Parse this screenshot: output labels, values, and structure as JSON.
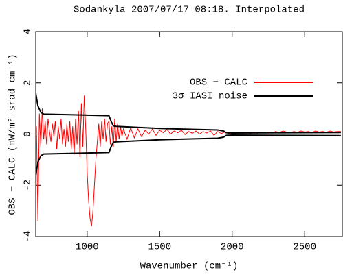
{
  "chart_data": {
    "type": "line",
    "title": "Sodankyla 2007/07/17 08:18. Interpolated",
    "x_label": "Wavenumber (cm⁻¹)",
    "y_label": "OBS − CALC (mW/m² srad cm⁻¹)",
    "xlim": [
      645,
      2760
    ],
    "ylim": [
      -4,
      4
    ],
    "xticks": [
      1000,
      1500,
      2000,
      2500
    ],
    "yticks": [
      -4,
      -2,
      0,
      2,
      4
    ],
    "legend": "upper right",
    "series": [
      {
        "name": "OBS − CALC",
        "color": "#ff0000",
        "x": [
          650,
          660,
          670,
          680,
          690,
          700,
          710,
          720,
          730,
          740,
          750,
          760,
          770,
          780,
          790,
          800,
          810,
          820,
          830,
          840,
          850,
          860,
          870,
          880,
          890,
          900,
          910,
          920,
          930,
          940,
          950,
          960,
          970,
          980,
          990,
          1000,
          1010,
          1020,
          1030,
          1040,
          1050,
          1060,
          1070,
          1080,
          1090,
          1100,
          1110,
          1120,
          1130,
          1140,
          1150,
          1160,
          1170,
          1180,
          1190,
          1200,
          1210,
          1220,
          1230,
          1240,
          1250,
          1275,
          1300,
          1325,
          1350,
          1375,
          1400,
          1425,
          1450,
          1475,
          1500,
          1525,
          1550,
          1575,
          1600,
          1625,
          1650,
          1675,
          1700,
          1725,
          1750,
          1775,
          1800,
          1825,
          1850,
          1875,
          1900,
          1925,
          1950,
          1975,
          2000,
          2025,
          2050,
          2075,
          2100,
          2125,
          2150,
          2175,
          2200,
          2225,
          2250,
          2275,
          2300,
          2325,
          2350,
          2375,
          2400,
          2425,
          2450,
          2475,
          2500,
          2525,
          2550,
          2575,
          2600,
          2625,
          2650,
          2675,
          2700,
          2725,
          2750
        ],
        "values": [
          0.3,
          -3.4,
          0.8,
          -0.5,
          1.0,
          -0.2,
          0.5,
          -0.4,
          0.6,
          0.1,
          -0.3,
          0.4,
          -0.1,
          0.5,
          -0.6,
          0.3,
          -0.2,
          0.6,
          -0.4,
          0.2,
          -0.5,
          0.4,
          -0.3,
          0.5,
          -0.6,
          0.3,
          -0.8,
          0.6,
          -0.4,
          0.9,
          -0.9,
          1.2,
          -0.5,
          1.5,
          0.2,
          -1.5,
          -2.6,
          -3.3,
          -3.6,
          -3.0,
          -2.0,
          -1.0,
          -0.3,
          0.4,
          -0.5,
          0.5,
          -0.2,
          0.6,
          -0.3,
          0.4,
          0.5,
          -0.4,
          0.3,
          -0.5,
          0.6,
          -0.3,
          0.4,
          -0.2,
          0.3,
          -0.1,
          0.2,
          -0.2,
          0.25,
          -0.15,
          0.2,
          -0.1,
          0.15,
          0,
          0.2,
          -0.05,
          0.15,
          0.05,
          0.18,
          0,
          0.12,
          0.05,
          0.15,
          -0.02,
          0.1,
          0.03,
          0.12,
          0,
          0.1,
          0.04,
          0.12,
          -0.05,
          0.1,
          0.02,
          0.08,
          0.02,
          0.05,
          0.02,
          0.05,
          0.03,
          0.06,
          0.02,
          0.07,
          0.03,
          0.06,
          0.04,
          0.08,
          0.05,
          0.1,
          0.06,
          0.12,
          0.08,
          0.05,
          0.1,
          0.07,
          0.12,
          0.08,
          0.1,
          0.06,
          0.12,
          0.08,
          0.1,
          0.07,
          0.12,
          0.08,
          0.1,
          0.1
        ]
      },
      {
        "name": "3σ IASI noise",
        "color": "#000000",
        "mirror": true,
        "x": [
          645,
          660,
          680,
          700,
          1150,
          1165,
          1180,
          1200,
          1500,
          1900,
          1940,
          1960,
          2000,
          2750
        ],
        "values": [
          1.6,
          1.1,
          0.85,
          0.78,
          0.72,
          0.5,
          0.32,
          0.3,
          0.22,
          0.16,
          0.12,
          0.05,
          0.04,
          0.06
        ]
      }
    ]
  }
}
